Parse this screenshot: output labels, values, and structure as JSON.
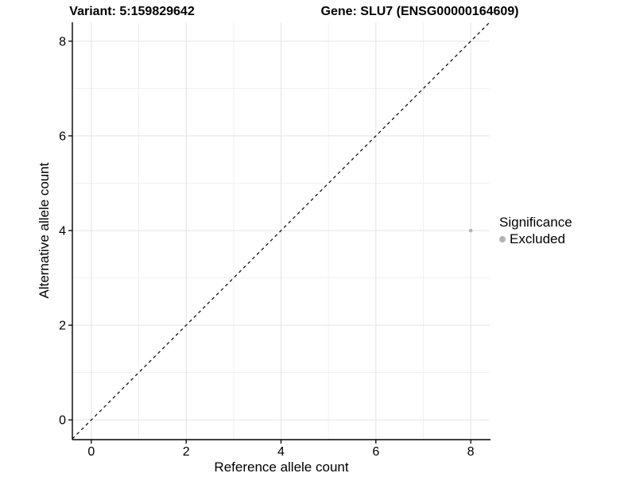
{
  "chart_data": {
    "type": "scatter",
    "titles": {
      "left": "Variant: 5:159829642",
      "right": "Gene: SLU7 (ENSG00000164609)"
    },
    "xlabel": "Reference allele count",
    "ylabel": "Alternative allele count",
    "xlim": [
      -0.4,
      8.4
    ],
    "ylim": [
      -0.4,
      8.4
    ],
    "x_ticks": [
      0,
      2,
      4,
      6,
      8
    ],
    "y_ticks": [
      0,
      2,
      4,
      6,
      8
    ],
    "minor_ticks": [
      1,
      3,
      5,
      7
    ],
    "grid": "major and minor gridlines on white panel",
    "reference_line": {
      "equation": "y = x",
      "style": "dashed",
      "color": "#000000"
    },
    "series": [
      {
        "name": "Excluded",
        "color": "#b3b3b3",
        "points": [
          {
            "x": 8,
            "y": 4
          }
        ]
      }
    ],
    "legend": {
      "title": "Significance",
      "position": "right",
      "items": [
        {
          "label": "Excluded",
          "color": "#b3b3b3",
          "marker": "circle-icon"
        }
      ]
    }
  },
  "colors": {
    "background": "#ffffff",
    "grid_major": "#e3e3e3",
    "grid_minor": "#f1f1f1",
    "axis": "#000000",
    "text": "#000000"
  }
}
